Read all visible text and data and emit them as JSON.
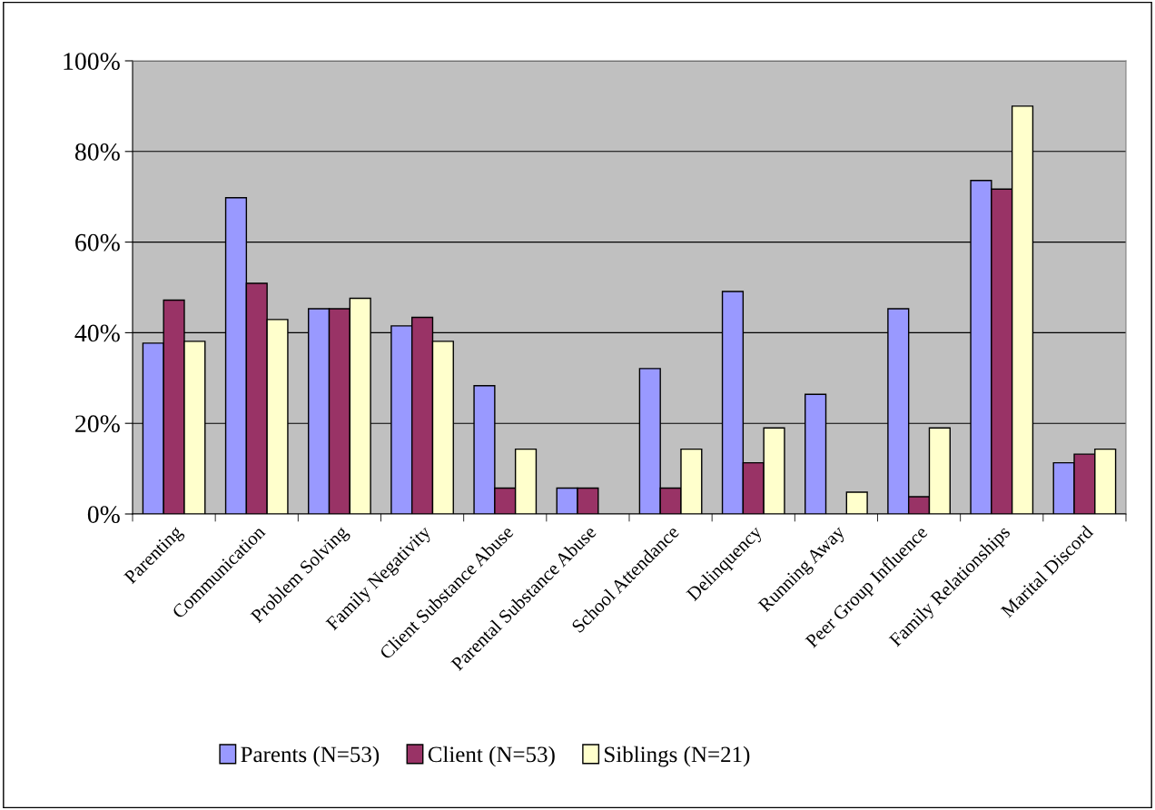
{
  "chart_data": {
    "type": "bar",
    "categories": [
      "Parenting",
      "Communication",
      "Problem Solving",
      "Family Negativity",
      "Client Substance Abuse",
      "Parental Substance Abuse",
      "School Attendance",
      "Delinquency",
      "Running Away",
      "Peer Group Influence",
      "Family Relationships",
      "Marital Discord"
    ],
    "series": [
      {
        "name": "Parents (N=53)",
        "color": "#9999ff",
        "values": [
          37.7,
          69.8,
          45.3,
          41.5,
          28.3,
          5.7,
          32.1,
          49.1,
          26.4,
          45.3,
          73.6,
          11.3
        ]
      },
      {
        "name": "Client (N=53)",
        "color": "#993366",
        "values": [
          47.2,
          50.9,
          45.3,
          43.4,
          5.7,
          5.7,
          5.7,
          11.3,
          null,
          3.8,
          71.7,
          13.2
        ]
      },
      {
        "name": "Siblings (N=21)",
        "color": "#ffffcc",
        "values": [
          38.1,
          42.9,
          47.6,
          38.1,
          14.3,
          null,
          14.3,
          19.0,
          4.8,
          19.0,
          90.0,
          14.3
        ]
      }
    ],
    "ylim": [
      0,
      100
    ],
    "yticks": [
      {
        "value": 0,
        "label": "0%"
      },
      {
        "value": 20,
        "label": "20%"
      },
      {
        "value": 40,
        "label": "40%"
      },
      {
        "value": 60,
        "label": "60%"
      },
      {
        "value": 80,
        "label": "80%"
      },
      {
        "value": 100,
        "label": "100%"
      }
    ],
    "grid": "y",
    "legend": "bottom"
  }
}
